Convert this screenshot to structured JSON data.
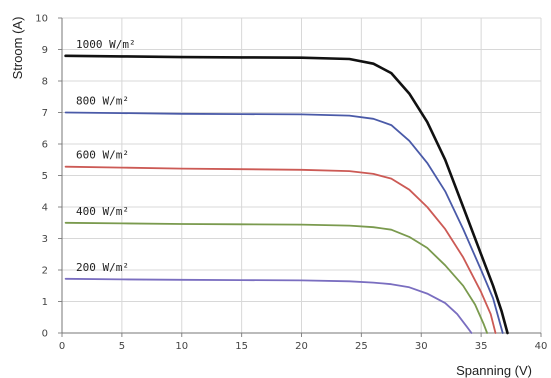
{
  "chart_data": {
    "type": "line",
    "title": "",
    "xlabel": "Spanning (V)",
    "ylabel": "Stroom (A)",
    "xlim": [
      0,
      40
    ],
    "ylim": [
      0,
      10
    ],
    "x_ticks": [
      "0",
      "5",
      "10",
      "15",
      "20",
      "25",
      "30",
      "35",
      "40"
    ],
    "y_ticks": [
      "0",
      "1",
      "2",
      "3",
      "4",
      "5",
      "6",
      "7",
      "8",
      "9",
      "10"
    ],
    "grid": true,
    "legend": "inline labels",
    "series": [
      {
        "name": "1000 W/m²",
        "color": "#111111",
        "points": [
          [
            0.3,
            8.8
          ],
          [
            5,
            8.78
          ],
          [
            10,
            8.76
          ],
          [
            15,
            8.75
          ],
          [
            20,
            8.74
          ],
          [
            24,
            8.7
          ],
          [
            26,
            8.55
          ],
          [
            27.5,
            8.25
          ],
          [
            29,
            7.6
          ],
          [
            30.5,
            6.7
          ],
          [
            32,
            5.5
          ],
          [
            33.5,
            4.0
          ],
          [
            35,
            2.5
          ],
          [
            36,
            1.5
          ],
          [
            36.7,
            0.7
          ],
          [
            37.2,
            0.0
          ]
        ]
      },
      {
        "name": "800 W/m²",
        "color": "#4a5aa8",
        "points": [
          [
            0.3,
            7.0
          ],
          [
            5,
            6.98
          ],
          [
            10,
            6.96
          ],
          [
            15,
            6.95
          ],
          [
            20,
            6.94
          ],
          [
            24,
            6.9
          ],
          [
            26,
            6.8
          ],
          [
            27.5,
            6.6
          ],
          [
            29,
            6.1
          ],
          [
            30.5,
            5.4
          ],
          [
            32,
            4.5
          ],
          [
            33.5,
            3.3
          ],
          [
            35,
            2.0
          ],
          [
            36,
            1.1
          ],
          [
            36.8,
            0.0
          ]
        ]
      },
      {
        "name": "600 W/m²",
        "color": "#cc5a55",
        "points": [
          [
            0.3,
            5.28
          ],
          [
            5,
            5.25
          ],
          [
            10,
            5.22
          ],
          [
            15,
            5.2
          ],
          [
            20,
            5.18
          ],
          [
            24,
            5.14
          ],
          [
            26,
            5.05
          ],
          [
            27.5,
            4.9
          ],
          [
            29,
            4.55
          ],
          [
            30.5,
            4.0
          ],
          [
            32,
            3.3
          ],
          [
            33.5,
            2.4
          ],
          [
            35,
            1.3
          ],
          [
            35.8,
            0.6
          ],
          [
            36.2,
            0.0
          ]
        ]
      },
      {
        "name": "400 W/m²",
        "color": "#7a9a4e",
        "points": [
          [
            0.3,
            3.5
          ],
          [
            5,
            3.48
          ],
          [
            10,
            3.46
          ],
          [
            15,
            3.45
          ],
          [
            20,
            3.44
          ],
          [
            24,
            3.41
          ],
          [
            26,
            3.36
          ],
          [
            27.5,
            3.28
          ],
          [
            29,
            3.05
          ],
          [
            30.5,
            2.7
          ],
          [
            32,
            2.15
          ],
          [
            33.5,
            1.5
          ],
          [
            34.5,
            0.9
          ],
          [
            35.2,
            0.3
          ],
          [
            35.5,
            0.0
          ]
        ]
      },
      {
        "name": "200 W/m²",
        "color": "#7a6ec0",
        "points": [
          [
            0.3,
            1.72
          ],
          [
            5,
            1.7
          ],
          [
            10,
            1.69
          ],
          [
            15,
            1.68
          ],
          [
            20,
            1.67
          ],
          [
            24,
            1.64
          ],
          [
            26,
            1.6
          ],
          [
            27.5,
            1.55
          ],
          [
            29,
            1.45
          ],
          [
            30.5,
            1.25
          ],
          [
            32,
            0.95
          ],
          [
            33,
            0.6
          ],
          [
            33.8,
            0.2
          ],
          [
            34.2,
            0.0
          ]
        ]
      }
    ]
  }
}
